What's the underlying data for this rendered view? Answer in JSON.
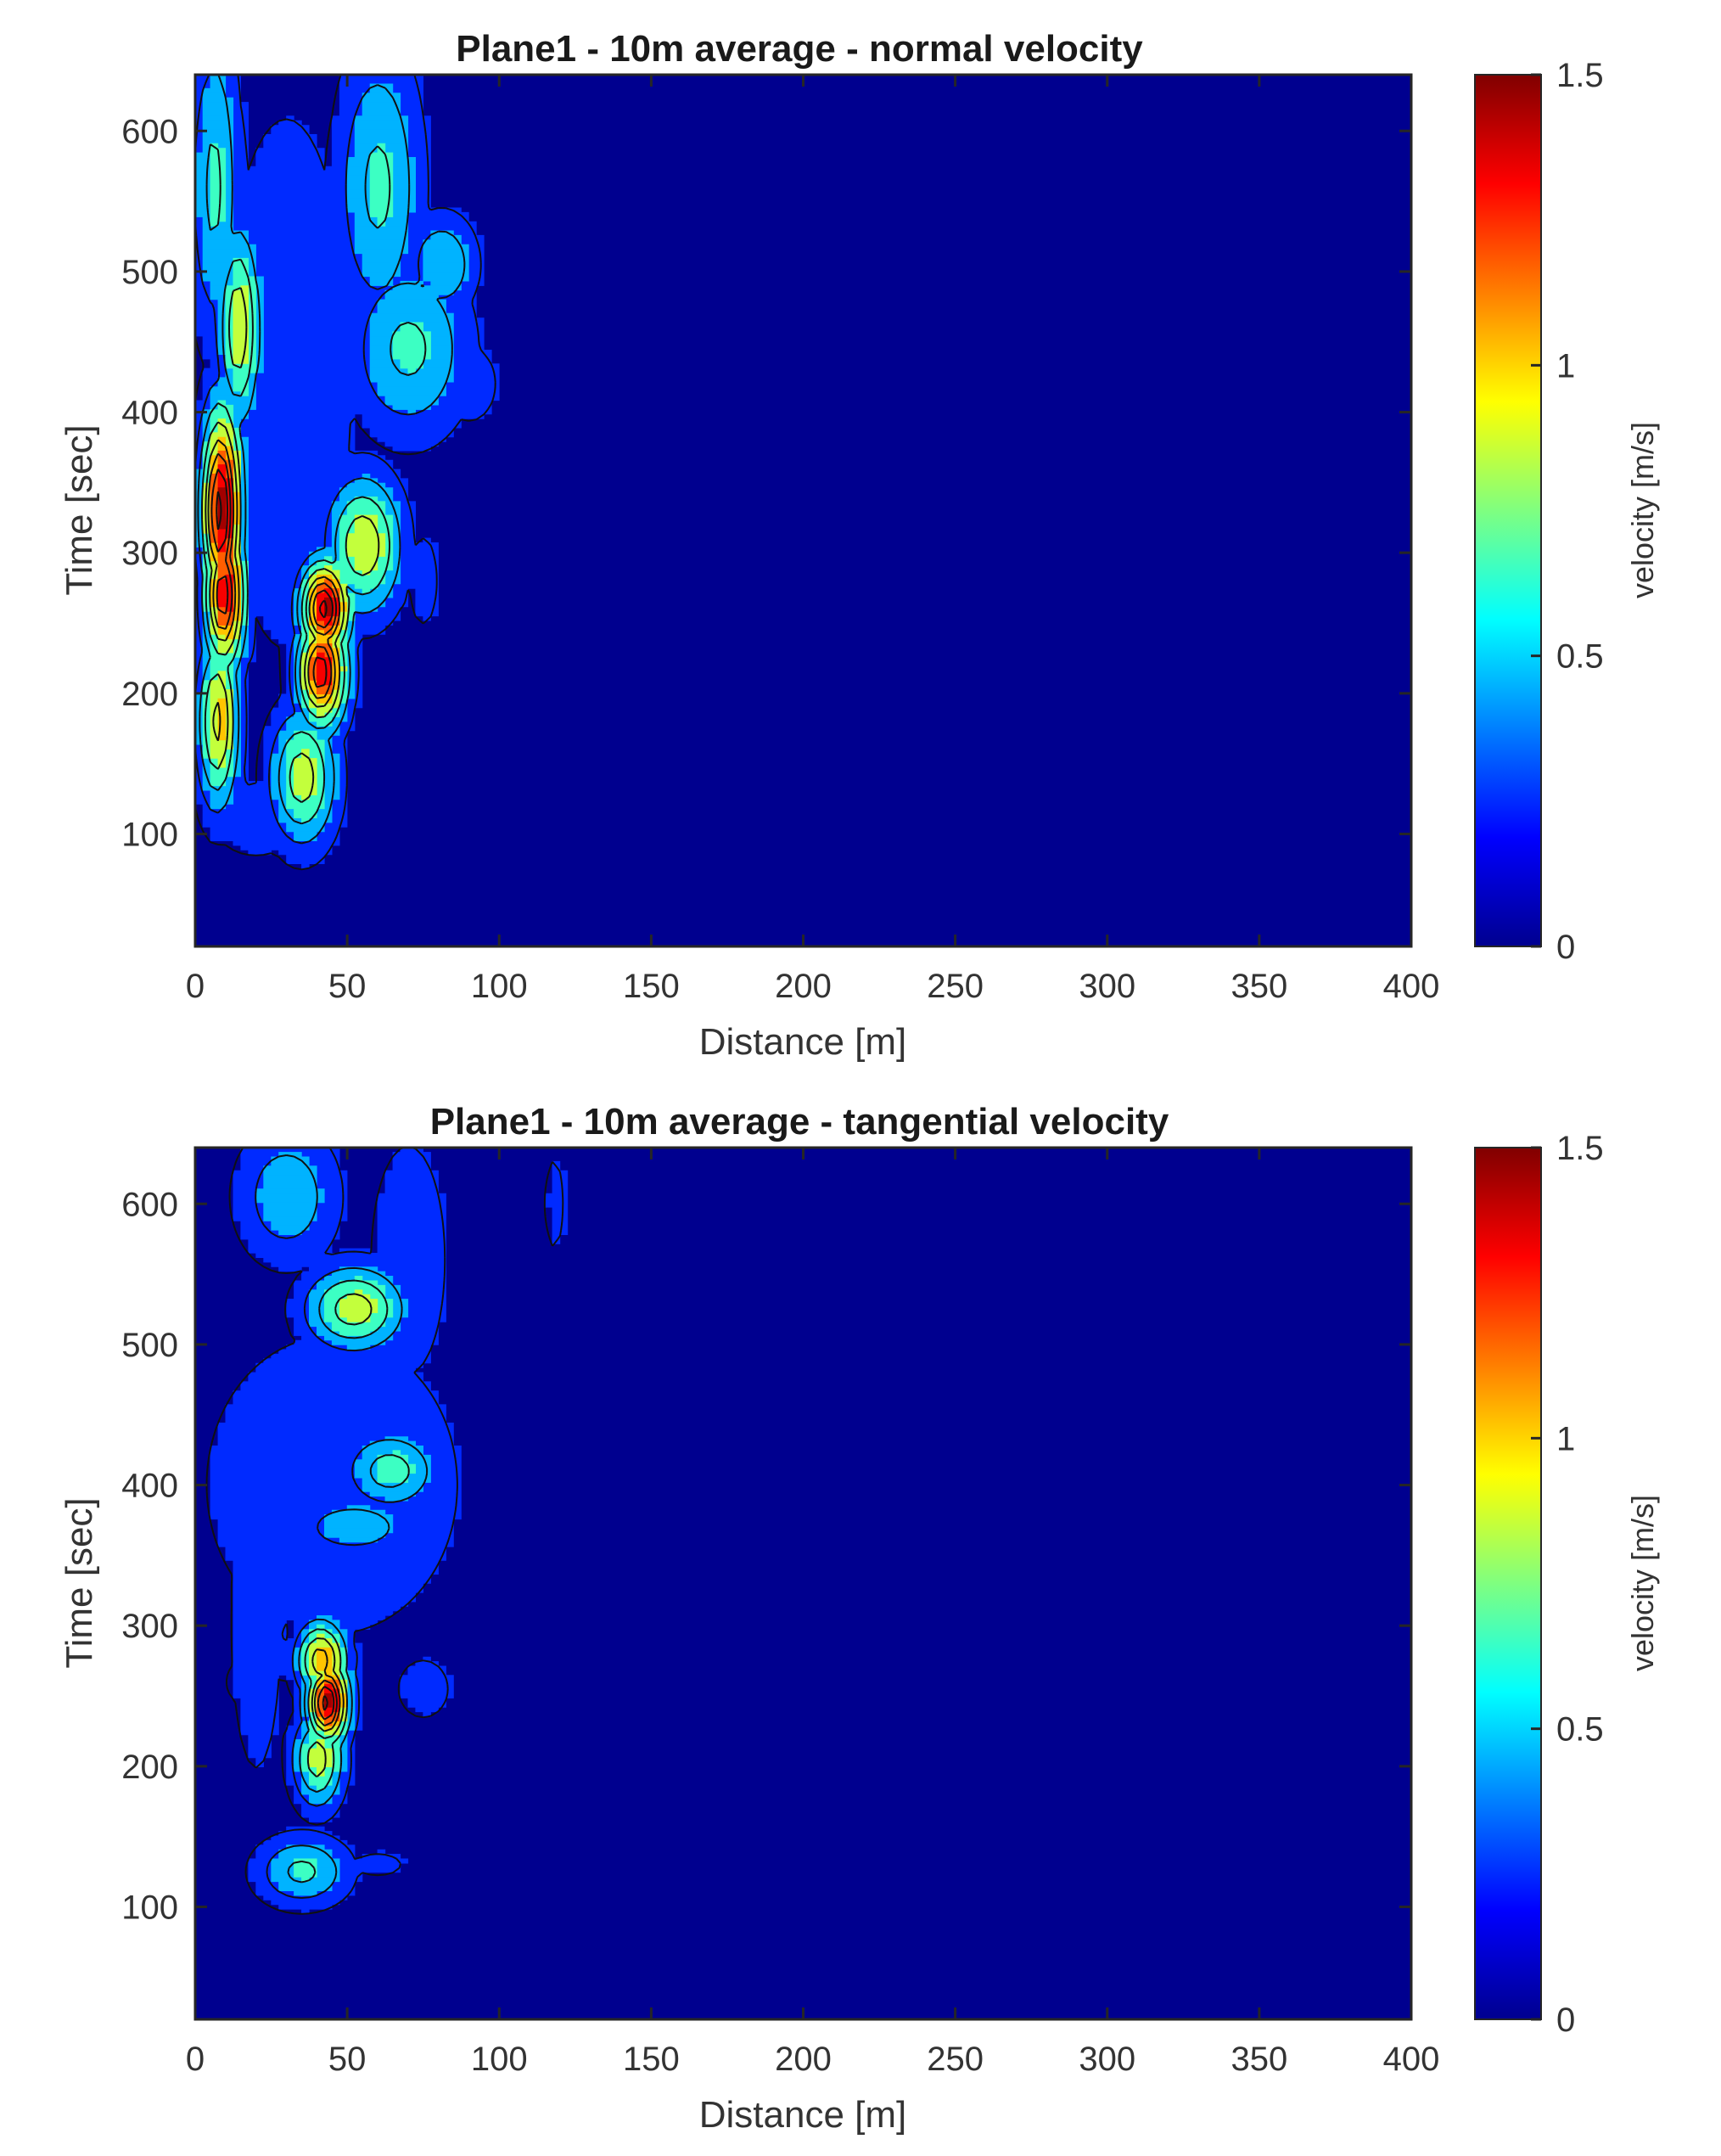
{
  "chart_data": [
    {
      "type": "heatmap",
      "subtype": "filled-contour",
      "title": "Plane1 - 10m average - normal velocity",
      "xlabel": "Distance [m]",
      "ylabel": "Time [sec]",
      "colorbar_label": "velocity [m/s]",
      "xlim": [
        0,
        400
      ],
      "ylim": [
        20,
        640
      ],
      "clim": [
        0,
        1.5
      ],
      "xticks": [
        "0",
        "50",
        "100",
        "150",
        "200",
        "250",
        "300",
        "350",
        "400"
      ],
      "yticks": [
        "100",
        "200",
        "300",
        "400",
        "500",
        "600"
      ],
      "colorbar_ticks": [
        "0",
        "0.5",
        "1",
        "1.5"
      ],
      "colormap": "jet",
      "levels": [
        0.15,
        0.35,
        0.55,
        0.75,
        0.95,
        1.1,
        1.25,
        1.4
      ],
      "background_value": 0.05,
      "features": [
        {
          "x": 8,
          "y": 330,
          "peak": 1.45,
          "sx": 5,
          "sy": 55
        },
        {
          "x": 9,
          "y": 270,
          "peak": 1.35,
          "sx": 5,
          "sy": 40
        },
        {
          "x": 7,
          "y": 180,
          "peak": 1.0,
          "sx": 5,
          "sy": 45
        },
        {
          "x": 14,
          "y": 460,
          "peak": 0.9,
          "sx": 5,
          "sy": 50
        },
        {
          "x": 6,
          "y": 560,
          "peak": 0.6,
          "sx": 6,
          "sy": 80
        },
        {
          "x": 42,
          "y": 260,
          "peak": 1.45,
          "sx": 6,
          "sy": 25
        },
        {
          "x": 41,
          "y": 215,
          "peak": 1.35,
          "sx": 6,
          "sy": 30
        },
        {
          "x": 35,
          "y": 140,
          "peak": 0.85,
          "sx": 8,
          "sy": 35
        },
        {
          "x": 55,
          "y": 305,
          "peak": 0.9,
          "sx": 9,
          "sy": 35
        },
        {
          "x": 70,
          "y": 445,
          "peak": 0.6,
          "sx": 14,
          "sy": 45
        },
        {
          "x": 81,
          "y": 505,
          "peak": 0.55,
          "sx": 8,
          "sy": 25
        },
        {
          "x": 60,
          "y": 560,
          "peak": 0.6,
          "sx": 10,
          "sy": 70
        },
        {
          "x": 30,
          "y": 420,
          "peak": 0.3,
          "sx": 18,
          "sy": 160
        },
        {
          "x": 90,
          "y": 420,
          "peak": 0.22,
          "sx": 10,
          "sy": 30
        },
        {
          "x": 20,
          "y": 110,
          "peak": 0.25,
          "sx": 14,
          "sy": 25
        },
        {
          "x": 75,
          "y": 280,
          "peak": 0.2,
          "sx": 6,
          "sy": 40
        }
      ]
    },
    {
      "type": "heatmap",
      "subtype": "filled-contour",
      "title": "Plane1 - 10m average - tangential velocity",
      "xlabel": "Distance [m]",
      "ylabel": "Time [sec]",
      "colorbar_label": "velocity [m/s]",
      "xlim": [
        0,
        400
      ],
      "ylim": [
        20,
        640
      ],
      "clim": [
        0,
        1.5
      ],
      "xticks": [
        "0",
        "50",
        "100",
        "150",
        "200",
        "250",
        "300",
        "350",
        "400"
      ],
      "yticks": [
        "100",
        "200",
        "300",
        "400",
        "500",
        "600"
      ],
      "colorbar_ticks": [
        "0",
        "0.5",
        "1",
        "1.5"
      ],
      "colormap": "jet",
      "levels": [
        0.15,
        0.35,
        0.55,
        0.75,
        0.95,
        1.1,
        1.25,
        1.4
      ],
      "background_value": 0.05,
      "features": [
        {
          "x": 43,
          "y": 245,
          "peak": 1.45,
          "sx": 5,
          "sy": 22
        },
        {
          "x": 41,
          "y": 275,
          "peak": 1.05,
          "sx": 6,
          "sy": 20
        },
        {
          "x": 40,
          "y": 205,
          "peak": 0.85,
          "sx": 6,
          "sy": 25
        },
        {
          "x": 52,
          "y": 525,
          "peak": 0.85,
          "sx": 12,
          "sy": 22
        },
        {
          "x": 64,
          "y": 410,
          "peak": 0.65,
          "sx": 11,
          "sy": 20
        },
        {
          "x": 52,
          "y": 370,
          "peak": 0.5,
          "sx": 14,
          "sy": 15
        },
        {
          "x": 35,
          "y": 125,
          "peak": 0.6,
          "sx": 11,
          "sy": 18
        },
        {
          "x": 30,
          "y": 605,
          "peak": 0.5,
          "sx": 12,
          "sy": 35
        },
        {
          "x": 45,
          "y": 400,
          "peak": 0.3,
          "sx": 35,
          "sy": 90
        },
        {
          "x": 70,
          "y": 560,
          "peak": 0.25,
          "sx": 12,
          "sy": 80
        },
        {
          "x": 20,
          "y": 300,
          "peak": 0.25,
          "sx": 8,
          "sy": 100
        },
        {
          "x": 75,
          "y": 255,
          "peak": 0.25,
          "sx": 8,
          "sy": 20
        },
        {
          "x": 60,
          "y": 130,
          "peak": 0.2,
          "sx": 10,
          "sy": 10
        },
        {
          "x": 15,
          "y": 260,
          "peak": 0.3,
          "sx": 4,
          "sy": 12
        },
        {
          "x": 118,
          "y": 600,
          "peak": 0.2,
          "sx": 4,
          "sy": 40
        }
      ]
    }
  ]
}
